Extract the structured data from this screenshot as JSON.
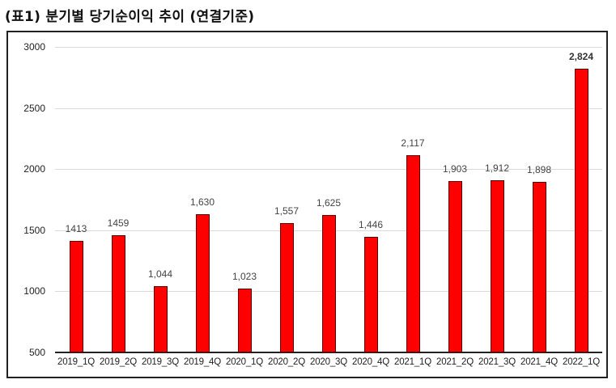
{
  "title": "(표1) 분기별 당기순이익 추이 (연결기준)",
  "chart_data": {
    "type": "bar",
    "title": "(표1) 분기별 당기순이익 추이 (연결기준)",
    "xlabel": "",
    "ylabel": "",
    "ylim": [
      500,
      3000
    ],
    "yticks": [
      500,
      1000,
      1500,
      2000,
      2500,
      3000
    ],
    "ytick_labels": [
      "500",
      "1000",
      "1500",
      "2000",
      "2500",
      "3000"
    ],
    "grid": true,
    "legend": null,
    "bar_color": "#ff0000",
    "categories": [
      "2019_1Q",
      "2019_2Q",
      "2019_3Q",
      "2019_4Q",
      "2020_1Q",
      "2020_2Q",
      "2020_3Q",
      "2020_4Q",
      "2021_1Q",
      "2021_2Q",
      "2021_3Q",
      "2021_4Q",
      "2022_1Q"
    ],
    "values": [
      1413,
      1459,
      1044,
      1630,
      1023,
      1557,
      1625,
      1446,
      2117,
      1903,
      1912,
      1898,
      2824
    ],
    "data_labels": [
      "1413",
      "1459",
      "1,044",
      "1,630",
      "1,023",
      "1,557",
      "1,625",
      "1,446",
      "2,117",
      "1,903",
      "1,912",
      "1,898",
      "2,824"
    ],
    "bold_labels": [
      12
    ]
  }
}
